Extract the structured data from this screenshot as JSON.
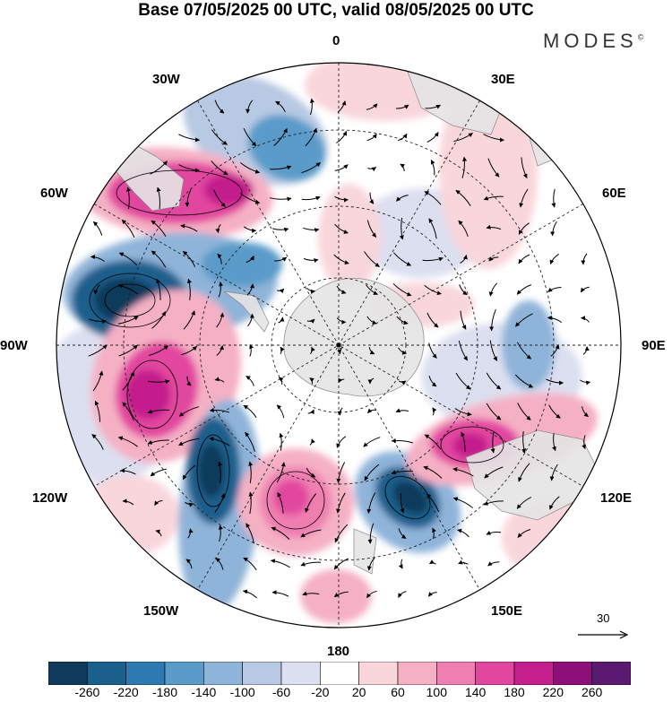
{
  "title": "Base 07/05/2025 00 UTC, valid 08/05/2025 00 UTC",
  "brand": {
    "name": "MODES",
    "mark": "©"
  },
  "map": {
    "projection": "south-polar-stereographic",
    "longitude_labels": {
      "lon_0": "0",
      "lon_30e": "30E",
      "lon_60e": "60E",
      "lon_90e": "90E",
      "lon_120e": "120E",
      "lon_150e": "150E",
      "lon_180": "180",
      "lon_150w": "150W",
      "lon_120w": "120W",
      "lon_90w": "90W",
      "lon_60w": "60W",
      "lon_30w": "30W"
    },
    "graticule": "dashed",
    "land_color": "#e5e5e5",
    "anomaly_pattern": "wavenumber-5 ring of alternating positive (pink/magenta) and negative (blue) anomalies around Antarctica"
  },
  "reference_vector": {
    "label": "30"
  },
  "colorbar": {
    "ticks": [
      "-260",
      "-220",
      "-180",
      "-140",
      "-100",
      "-60",
      "-20",
      "20",
      "60",
      "100",
      "140",
      "180",
      "220",
      "260"
    ],
    "colors": [
      "#0f3a5c",
      "#1b5f8c",
      "#2d7ab0",
      "#5a9bc9",
      "#8fb4d9",
      "#b8c9e3",
      "#dcdff0",
      "#ffffff",
      "#f9d6dc",
      "#f5b0c4",
      "#ef7fb1",
      "#e2479f",
      "#c41f8c",
      "#8c0f7a",
      "#5a1a72"
    ]
  }
}
